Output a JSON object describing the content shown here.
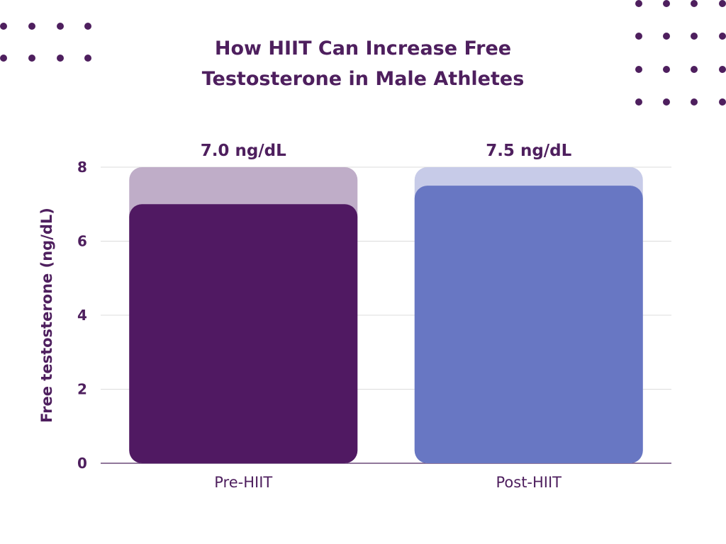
{
  "colors": {
    "text": "#4e1f5e",
    "grid": "#dcdcdc",
    "baseline": "#6b4a7a",
    "dots": "#4e1f5e",
    "pre_bar": "#501962",
    "pre_track": "#bfadc8",
    "post_bar": "#6877c3",
    "post_track": "#c7cbe8"
  },
  "chart_data": {
    "type": "bar",
    "title": "How HIIT Can Increase Free Testosterone in Male Athletes",
    "title_lines": [
      "How HIIT Can Increase Free",
      "Testosterone in Male Athletes"
    ],
    "ylabel": "Free testosterone (ng/dL)",
    "xlabel": "",
    "categories": [
      "Pre-HIIT",
      "Post-HIIT"
    ],
    "values": [
      7.0,
      7.5
    ],
    "value_labels": [
      "7.0 ng/dL",
      "7.5 ng/dL"
    ],
    "ylim": [
      0,
      8
    ],
    "yticks": [
      "0",
      "2",
      "4",
      "6",
      "8"
    ],
    "grid": true,
    "legend": "none"
  }
}
